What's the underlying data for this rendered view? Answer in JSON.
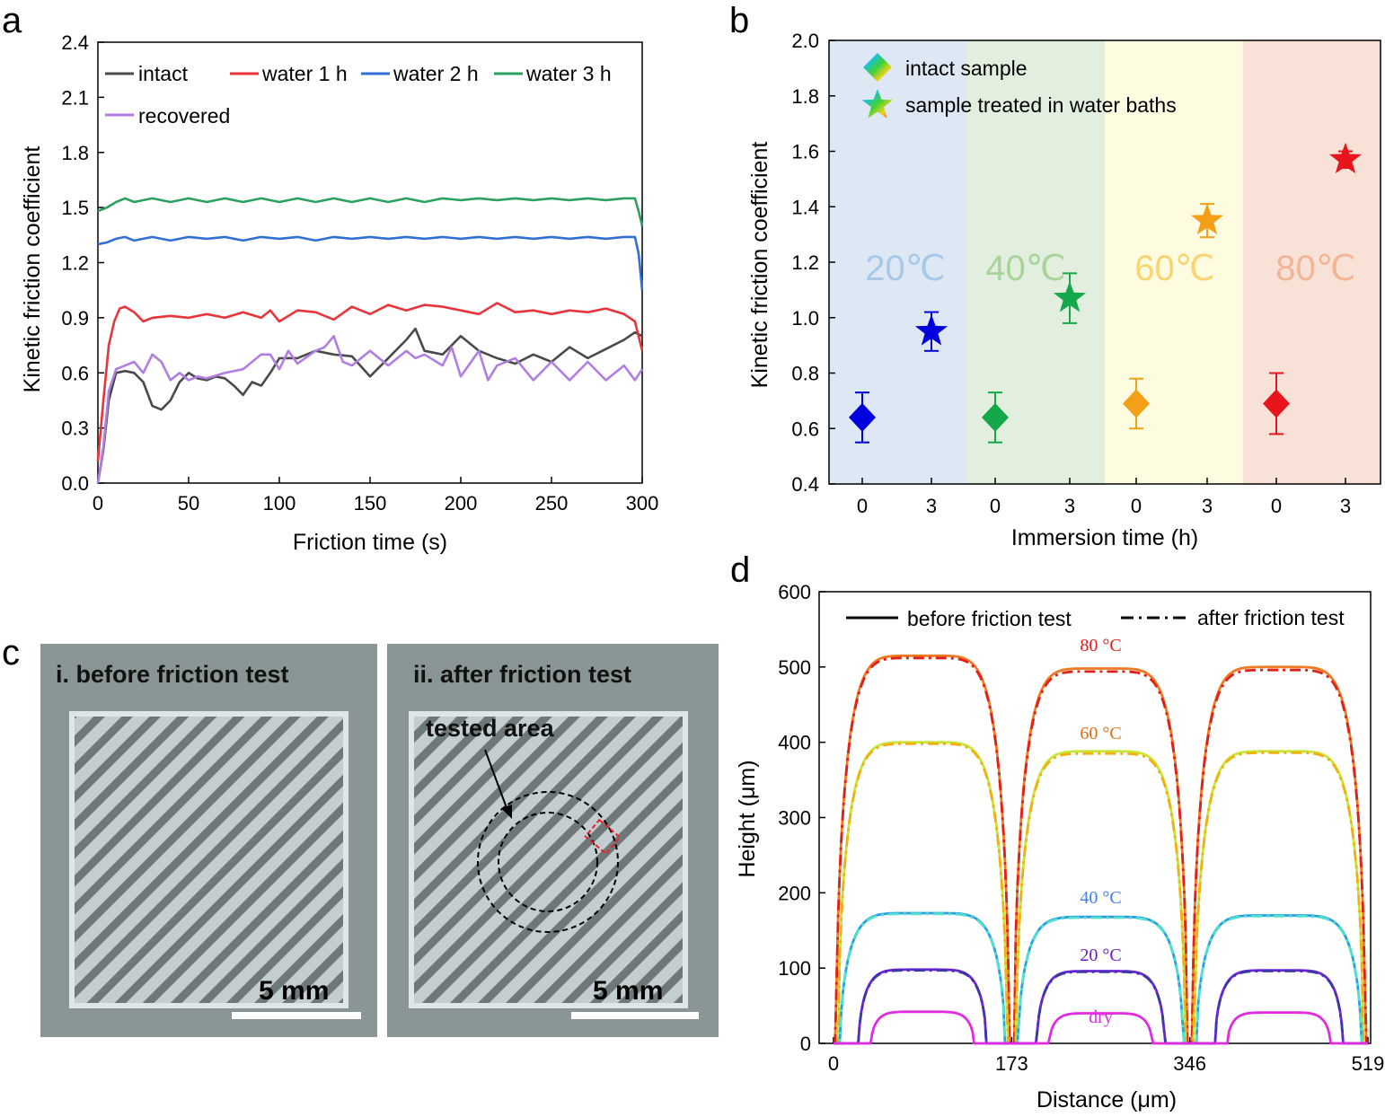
{
  "panels": {
    "a": "a",
    "b": "b",
    "c": "c",
    "d": "d"
  },
  "colors": {
    "intact": "#4a4a4a",
    "water1": "#e8353b",
    "water2": "#2f6fd6",
    "water3": "#2aa160",
    "recovered": "#b07ee3",
    "band20": "#dde8f4",
    "band40": "#e2efdf",
    "band60": "#fdfbe0",
    "band80": "#f8e2d8",
    "t20": "#a9c8e8",
    "t40": "#a8d49c",
    "t60": "#f8d56f",
    "t80": "#f2b596",
    "photoBg": "#8a9596",
    "photoSample": "#c4cdcf"
  },
  "chart_data": [
    {
      "id": "a",
      "type": "line",
      "xlabel": "Friction time (s)",
      "ylabel": "Kinetic friction coefficient",
      "xlim": [
        0,
        300
      ],
      "ylim": [
        0,
        2.4
      ],
      "xticks": [
        "0",
        "50",
        "100",
        "150",
        "200",
        "250",
        "300"
      ],
      "yticks": [
        "0.0",
        "0.3",
        "0.6",
        "0.9",
        "1.2",
        "1.5",
        "1.8",
        "2.1",
        "2.4"
      ],
      "legend_position": "top-left",
      "series": [
        {
          "name": "intact",
          "x": [
            0,
            3,
            6,
            10,
            15,
            20,
            25,
            30,
            35,
            40,
            45,
            50,
            55,
            60,
            65,
            70,
            75,
            80,
            85,
            90,
            95,
            100,
            110,
            120,
            130,
            140,
            150,
            160,
            170,
            175,
            180,
            190,
            200,
            210,
            220,
            230,
            240,
            250,
            260,
            270,
            280,
            290,
            296,
            300
          ],
          "y": [
            0,
            0.18,
            0.45,
            0.6,
            0.61,
            0.6,
            0.55,
            0.42,
            0.4,
            0.45,
            0.55,
            0.6,
            0.57,
            0.56,
            0.58,
            0.57,
            0.53,
            0.48,
            0.55,
            0.53,
            0.6,
            0.68,
            0.68,
            0.72,
            0.7,
            0.69,
            0.58,
            0.68,
            0.78,
            0.84,
            0.72,
            0.7,
            0.8,
            0.72,
            0.68,
            0.65,
            0.7,
            0.66,
            0.74,
            0.68,
            0.73,
            0.78,
            0.82,
            0.8
          ]
        },
        {
          "name": "water 1 h",
          "x": [
            0,
            3,
            6,
            9,
            12,
            15,
            20,
            25,
            30,
            40,
            50,
            60,
            70,
            80,
            90,
            95,
            100,
            110,
            120,
            130,
            140,
            150,
            160,
            170,
            180,
            190,
            200,
            210,
            220,
            230,
            240,
            250,
            260,
            270,
            280,
            290,
            296,
            300
          ],
          "y": [
            0.12,
            0.45,
            0.75,
            0.88,
            0.95,
            0.96,
            0.93,
            0.88,
            0.9,
            0.91,
            0.9,
            0.92,
            0.9,
            0.93,
            0.9,
            0.94,
            0.88,
            0.94,
            0.93,
            0.89,
            0.96,
            0.92,
            0.97,
            0.94,
            0.97,
            0.96,
            0.94,
            0.92,
            0.98,
            0.93,
            0.94,
            0.92,
            0.94,
            0.93,
            0.95,
            0.92,
            0.88,
            0.72
          ]
        },
        {
          "name": "water 2 h",
          "x": [
            0,
            5,
            10,
            15,
            20,
            30,
            40,
            50,
            60,
            70,
            80,
            90,
            100,
            110,
            120,
            130,
            140,
            150,
            160,
            170,
            180,
            190,
            200,
            210,
            220,
            230,
            240,
            250,
            260,
            270,
            280,
            290,
            296,
            298,
            300
          ],
          "y": [
            1.3,
            1.31,
            1.33,
            1.34,
            1.32,
            1.34,
            1.32,
            1.34,
            1.33,
            1.34,
            1.32,
            1.34,
            1.33,
            1.34,
            1.32,
            1.34,
            1.33,
            1.34,
            1.33,
            1.34,
            1.33,
            1.34,
            1.33,
            1.34,
            1.33,
            1.34,
            1.33,
            1.34,
            1.33,
            1.34,
            1.33,
            1.34,
            1.34,
            1.25,
            1.05
          ]
        },
        {
          "name": "water 3 h",
          "x": [
            0,
            5,
            10,
            15,
            20,
            30,
            40,
            50,
            60,
            70,
            80,
            90,
            100,
            110,
            120,
            130,
            140,
            150,
            160,
            170,
            180,
            190,
            200,
            210,
            220,
            230,
            240,
            250,
            260,
            270,
            280,
            290,
            296,
            298,
            300
          ],
          "y": [
            1.48,
            1.5,
            1.53,
            1.55,
            1.53,
            1.55,
            1.53,
            1.55,
            1.53,
            1.55,
            1.53,
            1.55,
            1.53,
            1.55,
            1.53,
            1.55,
            1.53,
            1.55,
            1.53,
            1.55,
            1.53,
            1.55,
            1.54,
            1.55,
            1.54,
            1.55,
            1.54,
            1.55,
            1.54,
            1.55,
            1.54,
            1.55,
            1.55,
            1.48,
            1.4
          ]
        },
        {
          "name": "recovered",
          "x": [
            0,
            3,
            6,
            10,
            15,
            20,
            25,
            30,
            35,
            40,
            45,
            50,
            55,
            60,
            70,
            80,
            90,
            95,
            100,
            105,
            110,
            120,
            125,
            130,
            135,
            140,
            150,
            160,
            170,
            175,
            180,
            190,
            195,
            200,
            210,
            215,
            220,
            230,
            240,
            250,
            260,
            270,
            280,
            290,
            296,
            300
          ],
          "y": [
            0,
            0.2,
            0.5,
            0.62,
            0.64,
            0.66,
            0.6,
            0.7,
            0.66,
            0.56,
            0.6,
            0.56,
            0.58,
            0.57,
            0.6,
            0.62,
            0.7,
            0.7,
            0.62,
            0.72,
            0.65,
            0.72,
            0.74,
            0.8,
            0.66,
            0.64,
            0.72,
            0.64,
            0.72,
            0.68,
            0.7,
            0.64,
            0.74,
            0.58,
            0.72,
            0.56,
            0.64,
            0.68,
            0.56,
            0.66,
            0.56,
            0.66,
            0.56,
            0.64,
            0.56,
            0.62
          ]
        }
      ]
    },
    {
      "id": "b",
      "type": "scatter",
      "xlabel": "Immersion time (h)",
      "ylabel": "Kinetic friction coefficient",
      "ylim": [
        0.4,
        2.0
      ],
      "yticks": [
        "0.4",
        "0.6",
        "0.8",
        "1.0",
        "1.2",
        "1.4",
        "1.6",
        "1.8",
        "2.0"
      ],
      "categories": [
        "0",
        "3",
        "0",
        "3",
        "0",
        "3",
        "0",
        "3"
      ],
      "bands": [
        "20℃",
        "40℃",
        "60℃",
        "80℃"
      ],
      "legend": [
        "intact sample",
        "sample treated  in water baths"
      ],
      "legend_position": "top-left",
      "points": [
        {
          "cat": 0,
          "y": 0.64,
          "err": 0.09,
          "marker": "diamond",
          "color": "#0000dd"
        },
        {
          "cat": 1,
          "y": 0.95,
          "err": 0.07,
          "marker": "star",
          "color": "#0000dd"
        },
        {
          "cat": 2,
          "y": 0.64,
          "err": 0.09,
          "marker": "diamond",
          "color": "#14a84a"
        },
        {
          "cat": 3,
          "y": 1.07,
          "err": 0.09,
          "marker": "star",
          "color": "#14a84a"
        },
        {
          "cat": 4,
          "y": 0.69,
          "err": 0.09,
          "marker": "diamond",
          "color": "#f4a016"
        },
        {
          "cat": 5,
          "y": 1.35,
          "err": 0.06,
          "marker": "star",
          "color": "#f4a016"
        },
        {
          "cat": 6,
          "y": 0.69,
          "err": 0.11,
          "marker": "diamond",
          "color": "#e8151c"
        },
        {
          "cat": 7,
          "y": 1.57,
          "err": 0.03,
          "marker": "star",
          "color": "#e8151c"
        }
      ]
    },
    {
      "id": "d",
      "type": "line",
      "xlabel": "Distance (μm)",
      "ylabel": "Height (μm)",
      "xlim": [
        0,
        519
      ],
      "ylim": [
        0,
        600
      ],
      "xticks": [
        "0",
        "173",
        "346",
        "519"
      ],
      "yticks": [
        "0",
        "100",
        "200",
        "300",
        "400",
        "500",
        "600"
      ],
      "legend": [
        "before friction test",
        "after friction test"
      ],
      "legend_position": "top",
      "curve_labels": [
        "80 °C",
        "60 °C",
        "40 °C",
        "20 °C",
        "dry"
      ],
      "series": [
        {
          "name": "80 °C",
          "peaks": [
            515,
            498,
            500
          ],
          "after": [
            512,
            494,
            496
          ],
          "color": "#f07a22",
          "after_color": "#e0201a",
          "label_color": "#e81b1b"
        },
        {
          "name": "60 °C",
          "peaks": [
            400,
            388,
            388
          ],
          "after": [
            398,
            385,
            386
          ],
          "color": "#c8e63a",
          "after_color": "#f0b012",
          "label_color": "#d9701a"
        },
        {
          "name": "40 °C",
          "peaks": [
            173,
            168,
            170
          ],
          "after": [
            172,
            167,
            169
          ],
          "color": "#2a9ee0",
          "after_color": "#4fe0d0",
          "label_color": "#3d7ff0"
        },
        {
          "name": "20 °C",
          "peaks": [
            98,
            96,
            97
          ],
          "after": [
            97,
            95,
            96
          ],
          "color": "#7020e0",
          "after_color": "#3a3aa0",
          "label_color": "#6a1bc7"
        },
        {
          "name": "dry",
          "peaks": [
            42,
            40,
            41
          ],
          "after": null,
          "color": "#e02be0",
          "after_color": null,
          "label_color": "#e02be0"
        }
      ]
    }
  ],
  "photos": {
    "left_title": "i. before friction test",
    "right_title": "ii. after friction test",
    "tested_area": "tested area",
    "scale_left": "5 mm",
    "scale_right": "5 mm"
  }
}
